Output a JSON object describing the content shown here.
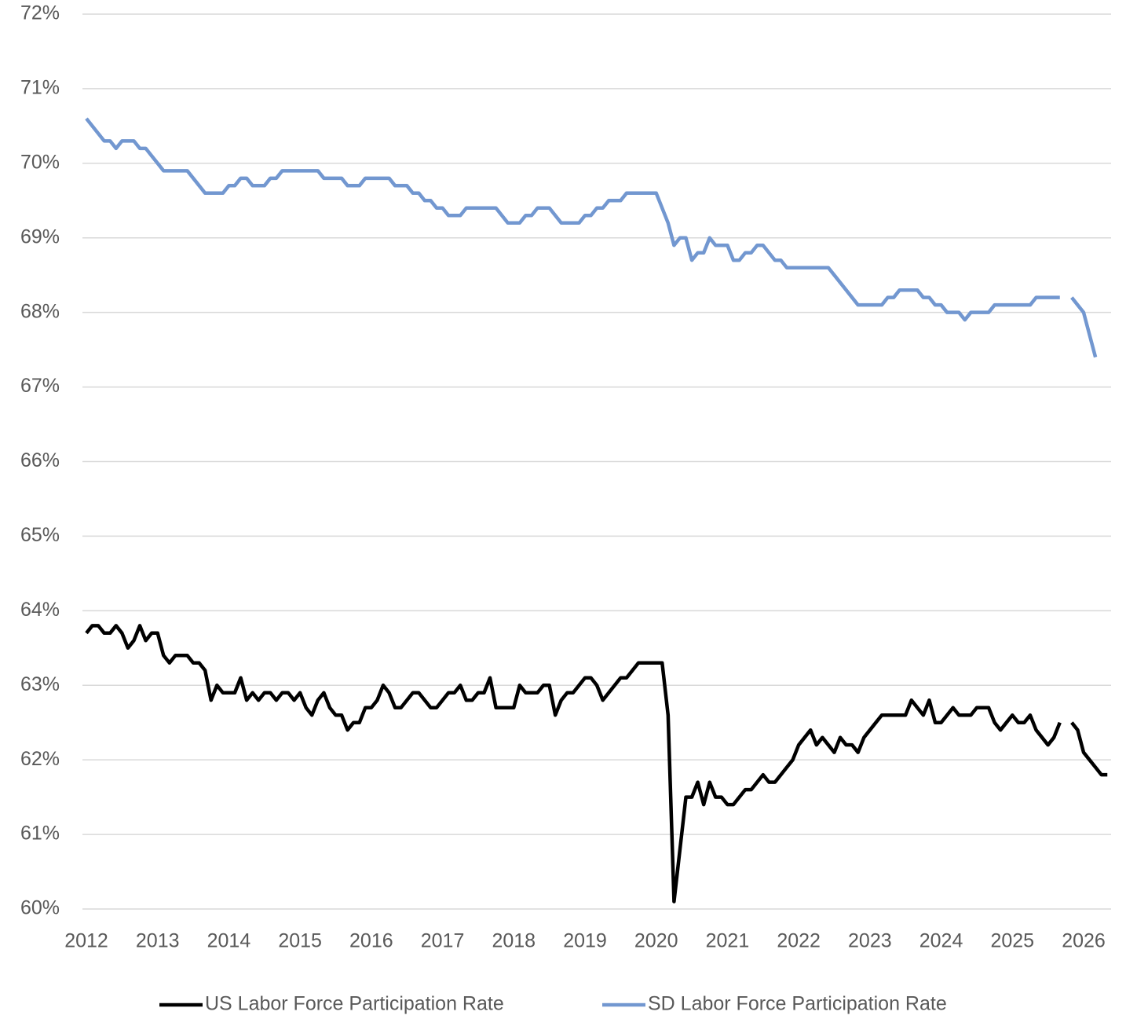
{
  "chart_data": {
    "type": "line",
    "categories": [
      "2012",
      null,
      null,
      null,
      null,
      null,
      null,
      null,
      null,
      null,
      null,
      null,
      "2013",
      null,
      null,
      null,
      null,
      null,
      null,
      null,
      null,
      null,
      null,
      null,
      "2014",
      null,
      null,
      null,
      null,
      null,
      null,
      null,
      null,
      null,
      null,
      null,
      "2015",
      null,
      null,
      null,
      null,
      null,
      null,
      null,
      null,
      null,
      null,
      null,
      "2016",
      null,
      null,
      null,
      null,
      null,
      null,
      null,
      null,
      null,
      null,
      null,
      "2017",
      null,
      null,
      null,
      null,
      null,
      null,
      null,
      null,
      null,
      null,
      null,
      "2018",
      null,
      null,
      null,
      null,
      null,
      null,
      null,
      null,
      null,
      null,
      null,
      "2019",
      null,
      null,
      null,
      null,
      null,
      null,
      null,
      null,
      null,
      null,
      null,
      "2020",
      null,
      null,
      null,
      null,
      null,
      null,
      null,
      null,
      null,
      null,
      null,
      "2021",
      null,
      null,
      null,
      null,
      null,
      null,
      null,
      null,
      null,
      null,
      null,
      "2022",
      null,
      null,
      null,
      null,
      null,
      null,
      null,
      null,
      null,
      null,
      null,
      "2023",
      null,
      null,
      null,
      null,
      null,
      null,
      null,
      null,
      null,
      null,
      null,
      "2024",
      null,
      null,
      null,
      null,
      null,
      null,
      null,
      null,
      null,
      null,
      null,
      "2025",
      null,
      null,
      null,
      null,
      null,
      null,
      null,
      null,
      null,
      null,
      null,
      "2026",
      null,
      null,
      null,
      null
    ],
    "series": [
      {
        "name": "US Labor Force Participation Rate",
        "color": "#000000",
        "values": [
          63.7,
          63.8,
          63.8,
          63.7,
          63.7,
          63.8,
          63.7,
          63.5,
          63.6,
          63.8,
          63.6,
          63.7,
          63.7,
          63.4,
          63.3,
          63.4,
          63.4,
          63.4,
          63.3,
          63.3,
          63.2,
          62.8,
          63.0,
          62.9,
          62.9,
          62.9,
          63.1,
          62.8,
          62.9,
          62.8,
          62.9,
          62.9,
          62.8,
          62.9,
          62.9,
          62.8,
          62.9,
          62.7,
          62.6,
          62.8,
          62.9,
          62.7,
          62.6,
          62.6,
          62.4,
          62.5,
          62.5,
          62.7,
          62.7,
          62.8,
          63.0,
          62.9,
          62.7,
          62.7,
          62.8,
          62.9,
          62.9,
          62.8,
          62.7,
          62.7,
          62.8,
          62.9,
          62.9,
          63.0,
          62.8,
          62.8,
          62.9,
          62.9,
          63.1,
          62.7,
          62.7,
          62.7,
          62.7,
          63.0,
          62.9,
          62.9,
          62.9,
          63.0,
          63.0,
          62.6,
          62.8,
          62.9,
          62.9,
          63.0,
          63.1,
          63.1,
          63.0,
          62.8,
          62.9,
          63.0,
          63.1,
          63.1,
          63.2,
          63.3,
          63.3,
          63.3,
          63.3,
          63.3,
          62.6,
          60.1,
          60.8,
          61.5,
          61.5,
          61.7,
          61.4,
          61.7,
          61.5,
          61.5,
          61.4,
          61.4,
          61.5,
          61.6,
          61.6,
          61.7,
          61.8,
          61.7,
          61.7,
          61.8,
          61.9,
          62.0,
          62.2,
          62.3,
          62.4,
          62.2,
          62.3,
          62.2,
          62.1,
          62.3,
          62.2,
          62.2,
          62.1,
          62.3,
          62.4,
          62.5,
          62.6,
          62.6,
          62.6,
          62.6,
          62.6,
          62.8,
          62.7,
          62.6,
          62.8,
          62.5,
          62.5,
          62.6,
          62.7,
          62.6,
          62.6,
          62.6,
          62.7,
          62.7,
          62.7,
          62.5,
          62.4,
          62.5,
          62.6,
          62.5,
          62.5,
          62.6,
          62.4,
          62.3,
          62.2,
          62.3,
          62.5,
          null,
          62.5,
          62.4,
          62.1,
          62.0,
          61.9,
          61.8,
          61.8
        ]
      },
      {
        "name": "SD Labor Force Participation Rate",
        "color": "#7297d0",
        "values": [
          70.6,
          70.5,
          70.4,
          70.3,
          70.3,
          70.2,
          70.3,
          70.3,
          70.3,
          70.2,
          70.2,
          70.1,
          70.0,
          69.9,
          69.9,
          69.9,
          69.9,
          69.9,
          69.8,
          69.7,
          69.6,
          69.6,
          69.6,
          69.6,
          69.7,
          69.7,
          69.8,
          69.8,
          69.7,
          69.7,
          69.7,
          69.8,
          69.8,
          69.9,
          69.9,
          69.9,
          69.9,
          69.9,
          69.9,
          69.9,
          69.8,
          69.8,
          69.8,
          69.8,
          69.7,
          69.7,
          69.7,
          69.8,
          69.8,
          69.8,
          69.8,
          69.8,
          69.7,
          69.7,
          69.7,
          69.6,
          69.6,
          69.5,
          69.5,
          69.4,
          69.4,
          69.3,
          69.3,
          69.3,
          69.4,
          69.4,
          69.4,
          69.4,
          69.4,
          69.4,
          69.3,
          69.2,
          69.2,
          69.2,
          69.3,
          69.3,
          69.4,
          69.4,
          69.4,
          69.3,
          69.2,
          69.2,
          69.2,
          69.2,
          69.3,
          69.3,
          69.4,
          69.4,
          69.5,
          69.5,
          69.5,
          69.6,
          69.6,
          69.6,
          69.6,
          69.6,
          69.6,
          69.4,
          69.2,
          68.9,
          69.0,
          69.0,
          68.7,
          68.8,
          68.8,
          69.0,
          68.9,
          68.9,
          68.9,
          68.7,
          68.7,
          68.8,
          68.8,
          68.9,
          68.9,
          68.8,
          68.7,
          68.7,
          68.6,
          68.6,
          68.6,
          68.6,
          68.6,
          68.6,
          68.6,
          68.6,
          68.5,
          68.4,
          68.3,
          68.2,
          68.1,
          68.1,
          68.1,
          68.1,
          68.1,
          68.2,
          68.2,
          68.3,
          68.3,
          68.3,
          68.3,
          68.2,
          68.2,
          68.1,
          68.1,
          68.0,
          68.0,
          68.0,
          67.9,
          68.0,
          68.0,
          68.0,
          68.0,
          68.1,
          68.1,
          68.1,
          68.1,
          68.1,
          68.1,
          68.1,
          68.2,
          68.2,
          68.2,
          68.2,
          68.2,
          null,
          68.2,
          68.1,
          68.0,
          67.7,
          67.4,
          null,
          null
        ]
      }
    ],
    "ylim": [
      60,
      72
    ],
    "yticks": [
      {
        "value": 60,
        "label": "60%"
      },
      {
        "value": 61,
        "label": "61%"
      },
      {
        "value": 62,
        "label": "62%"
      },
      {
        "value": 63,
        "label": "63%"
      },
      {
        "value": 64,
        "label": "64%"
      },
      {
        "value": 65,
        "label": "65%"
      },
      {
        "value": 66,
        "label": "66%"
      },
      {
        "value": 67,
        "label": "67%"
      },
      {
        "value": 68,
        "label": "68%"
      },
      {
        "value": 69,
        "label": "69%"
      },
      {
        "value": 70,
        "label": "70%"
      },
      {
        "value": 71,
        "label": "71%"
      },
      {
        "value": 72,
        "label": "72%"
      }
    ],
    "grid": true,
    "legend": "bottom"
  }
}
